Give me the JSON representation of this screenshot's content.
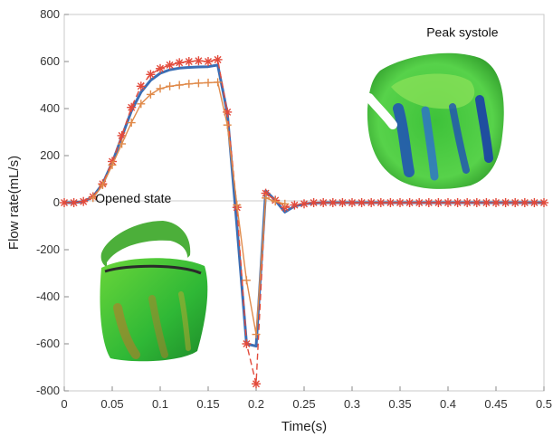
{
  "chart_data": {
    "type": "line",
    "title": "",
    "xlabel": "Time(s)",
    "ylabel": "Flow rate(mL/s)",
    "xlim": [
      0,
      0.5
    ],
    "ylim": [
      -800,
      800
    ],
    "x_ticks": [
      "0",
      "0.05",
      "0.1",
      "0.15",
      "0.2",
      "0.25",
      "0.3",
      "0.35",
      "0.4",
      "0.45",
      "0.5"
    ],
    "y_ticks": [
      "800",
      "600",
      "400",
      "200",
      "0",
      "-200",
      "-400",
      "-600",
      "-800"
    ],
    "grid": false,
    "legend": false,
    "annotations": [
      {
        "text": "Peak systole",
        "x": 0.415,
        "y": 705
      },
      {
        "text": "Opened state",
        "x": 0.072,
        "y": 0
      }
    ],
    "series": [
      {
        "style": "solid",
        "color": "#3b6fb5",
        "x": [
          0,
          0.01,
          0.02,
          0.03,
          0.04,
          0.05,
          0.06,
          0.07,
          0.08,
          0.09,
          0.1,
          0.11,
          0.12,
          0.13,
          0.14,
          0.15,
          0.16,
          0.17,
          0.18,
          0.19,
          0.2,
          0.21,
          0.22,
          0.23,
          0.24,
          0.25,
          0.26,
          0.27,
          0.28,
          0.3,
          0.35,
          0.4,
          0.45,
          0.5
        ],
        "y": [
          0,
          0,
          5,
          25,
          80,
          170,
          280,
          390,
          470,
          520,
          550,
          565,
          572,
          575,
          577,
          578,
          585,
          380,
          -100,
          -600,
          -610,
          50,
          10,
          -40,
          -15,
          -5,
          -2,
          0,
          0,
          0,
          0,
          0,
          0,
          0
        ]
      },
      {
        "style": "dashed",
        "color": "#e24a3b",
        "marker": "*",
        "x": [
          0,
          0.01,
          0.02,
          0.03,
          0.04,
          0.05,
          0.06,
          0.07,
          0.08,
          0.09,
          0.1,
          0.11,
          0.12,
          0.13,
          0.14,
          0.15,
          0.16,
          0.17,
          0.18,
          0.19,
          0.2,
          0.21,
          0.22,
          0.23,
          0.24,
          0.25,
          0.26,
          0.27,
          0.28,
          0.29,
          0.3,
          0.31,
          0.32,
          0.33,
          0.34,
          0.35,
          0.36,
          0.37,
          0.38,
          0.39,
          0.4,
          0.41,
          0.42,
          0.43,
          0.44,
          0.45,
          0.46,
          0.47,
          0.48,
          0.49,
          0.5
        ],
        "y": [
          0,
          0,
          5,
          25,
          80,
          175,
          285,
          405,
          495,
          545,
          570,
          585,
          595,
          600,
          603,
          600,
          608,
          385,
          -20,
          -600,
          -770,
          40,
          10,
          -20,
          -10,
          -5,
          0,
          0,
          0,
          0,
          0,
          0,
          0,
          0,
          0,
          0,
          0,
          0,
          0,
          0,
          0,
          0,
          0,
          0,
          0,
          0,
          0,
          0,
          0,
          0,
          0
        ]
      },
      {
        "style": "solid",
        "color": "#e08a4a",
        "marker": "+",
        "x": [
          0.03,
          0.04,
          0.05,
          0.06,
          0.07,
          0.08,
          0.09,
          0.1,
          0.11,
          0.12,
          0.13,
          0.14,
          0.15,
          0.16,
          0.17,
          0.18,
          0.19,
          0.2,
          0.21,
          0.22,
          0.23
        ],
        "y": [
          20,
          75,
          160,
          250,
          340,
          420,
          460,
          485,
          495,
          500,
          505,
          508,
          510,
          512,
          330,
          -10,
          -330,
          -560,
          20,
          5,
          -5
        ]
      }
    ]
  }
}
